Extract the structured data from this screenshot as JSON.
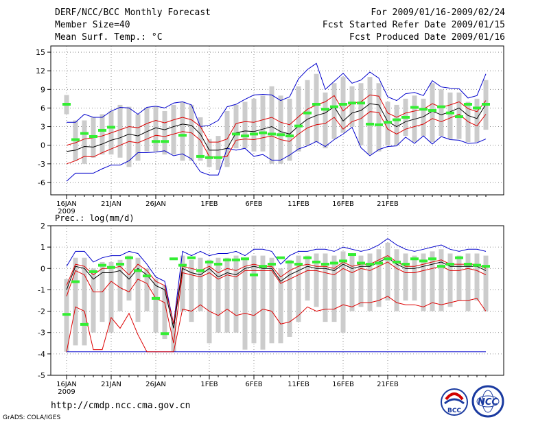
{
  "header": {
    "title": "DERF/NCC/BCC Monthly Forecast",
    "member_size": "Member Size=40",
    "variable": "Mean Surf. Temp.: °C",
    "period": "For 2009/01/16-2009/02/24",
    "start_date": "Fcst Started Refer Date 2009/01/15",
    "produced_date": "Fcst Produced Date 2009/01/16"
  },
  "lower_panel_label": "Prec.: log(mm/d)",
  "footer": {
    "url": "http://cmdp.ncc.cma.gov.cn",
    "software": "GrADS: COLA/IGES",
    "logo1_text": "BCC",
    "logo2_text": "NCC"
  },
  "colors": {
    "ensemble_mean": "#000000",
    "ci_band": "#dd0000",
    "envelope": "#0000cc",
    "observed": "#33ee33",
    "range_bar": "#cccccc"
  },
  "chart_data": [
    {
      "type": "line",
      "title": "Mean Surf. Temp.: °C",
      "ylim": [
        -8,
        16
      ],
      "yticks": [
        -6,
        -3,
        0,
        3,
        6,
        9,
        12,
        15
      ],
      "xticks": [
        {
          "day": 0,
          "label": "16JAN",
          "sub": "2009"
        },
        {
          "day": 5,
          "label": "21JAN"
        },
        {
          "day": 10,
          "label": "26JAN"
        },
        {
          "day": 16,
          "label": "1FEB"
        },
        {
          "day": 21,
          "label": "6FEB"
        },
        {
          "day": 26,
          "label": "11FEB"
        },
        {
          "day": 31,
          "label": "16FEB"
        },
        {
          "day": 36,
          "label": "21FEB"
        }
      ],
      "mean": [
        -1.0,
        -0.8,
        -0.2,
        -0.3,
        0.2,
        0.8,
        1.2,
        1.8,
        1.5,
        2.2,
        2.8,
        2.5,
        3.0,
        3.4,
        3.2,
        1.8,
        -0.8,
        -0.8,
        -0.5,
        2.0,
        2.3,
        2.2,
        2.6,
        3.0,
        2.2,
        1.8,
        3.1,
        4.2,
        4.8,
        5.2,
        6.2,
        3.9,
        5.2,
        5.6,
        6.7,
        6.5,
        3.8,
        3.0,
        3.8,
        4.2,
        4.6,
        5.5,
        4.9,
        5.4,
        6.0,
        4.8,
        4.3,
        6.6
      ],
      "ci_upper": [
        0.0,
        0.4,
        1.0,
        1.2,
        1.5,
        2.0,
        2.5,
        3.0,
        2.8,
        3.5,
        4.0,
        3.6,
        4.1,
        4.5,
        4.1,
        3.0,
        0.5,
        0.5,
        1.0,
        3.5,
        3.8,
        3.7,
        4.1,
        4.5,
        3.7,
        3.3,
        4.6,
        5.8,
        6.5,
        7.0,
        8.0,
        5.5,
        6.8,
        7.0,
        8.1,
        7.9,
        5.2,
        4.5,
        5.2,
        5.5,
        5.8,
        6.7,
        6.1,
        6.5,
        7.0,
        5.9,
        5.4,
        7.2
      ],
      "ci_lower": [
        -3.0,
        -2.5,
        -1.8,
        -1.9,
        -1.2,
        -0.6,
        0.0,
        0.6,
        0.4,
        1.0,
        1.6,
        1.4,
        1.8,
        2.2,
        2.0,
        0.8,
        -1.8,
        -2.0,
        -1.8,
        0.8,
        1.0,
        0.9,
        1.2,
        1.5,
        0.9,
        0.6,
        1.8,
        2.8,
        3.3,
        3.5,
        4.5,
        2.6,
        3.8,
        4.3,
        5.4,
        5.3,
        2.6,
        1.8,
        2.6,
        3.0,
        3.4,
        4.3,
        3.8,
        4.4,
        5.0,
        3.8,
        3.1,
        5.0
      ],
      "env_upper": [
        3.7,
        3.7,
        5.0,
        4.5,
        4.5,
        5.5,
        6.1,
        6.0,
        5.0,
        6.1,
        6.3,
        6.0,
        6.8,
        7.0,
        6.5,
        3.0,
        3.2,
        4.0,
        6.2,
        6.6,
        7.4,
        8.1,
        8.2,
        8.1,
        7.2,
        7.8,
        10.7,
        12.2,
        13.2,
        9.0,
        10.3,
        11.6,
        10.0,
        10.5,
        11.8,
        10.8,
        7.8,
        7.2,
        8.3,
        8.5,
        8.0,
        10.4,
        9.4,
        9.2,
        9.1,
        7.6,
        8.0,
        11.5
      ],
      "env_lower": [
        -5.8,
        -4.5,
        -4.5,
        -4.5,
        -3.8,
        -3.2,
        -3.2,
        -2.5,
        -1.2,
        -1.2,
        -1.1,
        -0.9,
        -1.7,
        -1.4,
        -2.2,
        -4.3,
        -4.8,
        -4.8,
        -0.5,
        -0.8,
        -0.5,
        -1.8,
        -1.5,
        -2.4,
        -2.4,
        -1.6,
        -0.6,
        -0.1,
        0.6,
        -0.2,
        0.9,
        1.8,
        2.9,
        -0.4,
        -1.7,
        -0.7,
        -0.2,
        -0.1,
        1.3,
        0.3,
        1.5,
        0.2,
        1.4,
        0.9,
        0.8,
        0.3,
        0.4,
        1.0
      ],
      "range_upper": [
        8.1,
        4.0,
        4.0,
        4.5,
        5.0,
        5.5,
        6.5,
        6.2,
        5.0,
        6.0,
        6.3,
        5.5,
        6.5,
        7.0,
        6.5,
        4.5,
        1.0,
        1.5,
        5.5,
        6.5,
        7.0,
        7.5,
        8.0,
        9.5,
        8.0,
        7.5,
        9.5,
        10.5,
        11.5,
        8.5,
        10.0,
        11.0,
        9.5,
        10.0,
        11.0,
        10.0,
        7.0,
        6.5,
        7.5,
        8.0,
        7.5,
        10.0,
        9.0,
        8.5,
        8.5,
        7.0,
        7.5,
        10.5
      ],
      "range_lower": [
        5.0,
        -2.5,
        -3.0,
        -2.0,
        -1.5,
        -1.5,
        -2.0,
        -3.5,
        -2.5,
        -1.0,
        -1.0,
        -1.5,
        -1.5,
        -2.5,
        -2.5,
        -2.5,
        -3.5,
        -4.0,
        -3.5,
        -0.5,
        -0.5,
        -1.0,
        -1.0,
        -3.0,
        -3.0,
        -2.5,
        -1.0,
        0.0,
        0.5,
        -0.5,
        1.0,
        2.0,
        3.0,
        0.0,
        -1.5,
        -1.0,
        0.0,
        0.0,
        1.5,
        0.5,
        1.5,
        0.5,
        1.5,
        1.0,
        1.0,
        0.5,
        0.5,
        2.5
      ],
      "observed": [
        6.6,
        0.9,
        1.9,
        1.4,
        2.4,
        2.9,
        null,
        null,
        null,
        null,
        0.6,
        0.6,
        null,
        1.6,
        null,
        -1.8,
        -2.0,
        -2.0,
        null,
        1.8,
        1.5,
        1.8,
        2.0,
        1.8,
        1.7,
        1.5,
        3.1,
        5.2,
        6.6,
        5.8,
        6.2,
        6.6,
        6.8,
        6.8,
        3.4,
        3.3,
        3.7,
        4.1,
        4.5,
        6.1,
        5.8,
        5.6,
        6.2,
        5.2,
        4.6,
        6.6,
        6.0,
        6.6
      ]
    },
    {
      "type": "line",
      "title": "Prec.: log(mm/d)",
      "ylim": [
        -5,
        2
      ],
      "yticks": [
        -5,
        -4,
        -3,
        -2,
        -1,
        0,
        1,
        2
      ],
      "xticks": [
        {
          "day": 0,
          "label": "16JAN",
          "sub": "2009"
        },
        {
          "day": 5,
          "label": "21JAN"
        },
        {
          "day": 10,
          "label": "26JAN"
        },
        {
          "day": 16,
          "label": "1FEB"
        },
        {
          "day": 21,
          "label": "6FEB"
        },
        {
          "day": 26,
          "label": "11FEB"
        },
        {
          "day": 31,
          "label": "16FEB"
        },
        {
          "day": 36,
          "label": "21FEB"
        }
      ],
      "mean": [
        -1.0,
        0.1,
        0.0,
        -0.5,
        -0.2,
        -0.2,
        -0.1,
        -0.5,
        0.0,
        -0.3,
        -0.8,
        -1.0,
        -2.8,
        0.0,
        -0.2,
        -0.3,
        0.0,
        -0.4,
        -0.2,
        -0.3,
        0.0,
        0.1,
        0.0,
        0.0,
        -0.6,
        -0.3,
        -0.1,
        0.1,
        0.0,
        0.0,
        -0.1,
        0.2,
        0.0,
        0.1,
        0.1,
        0.3,
        0.5,
        0.2,
        0.0,
        0.0,
        0.1,
        0.2,
        0.3,
        0.1,
        0.1,
        0.1,
        0.1,
        -0.1
      ],
      "ci_upper": [
        -0.8,
        0.2,
        0.1,
        -0.3,
        0.0,
        0.0,
        0.1,
        -0.3,
        0.2,
        -0.1,
        -0.6,
        -0.8,
        -2.6,
        0.1,
        0.0,
        -0.1,
        0.1,
        -0.2,
        0.0,
        -0.1,
        0.1,
        0.2,
        0.1,
        0.1,
        -0.4,
        -0.1,
        0.1,
        0.2,
        0.1,
        0.1,
        0.0,
        0.3,
        0.1,
        0.2,
        0.2,
        0.4,
        0.6,
        0.3,
        0.1,
        0.1,
        0.2,
        0.3,
        0.4,
        0.2,
        0.2,
        0.2,
        0.2,
        0.0
      ],
      "ci_lower": [
        -1.3,
        -0.1,
        -0.3,
        -1.1,
        -1.1,
        -0.6,
        -0.9,
        -1.1,
        -0.5,
        -0.7,
        -1.4,
        -1.6,
        -3.5,
        -0.2,
        -0.3,
        -0.4,
        -0.2,
        -0.5,
        -0.3,
        -0.4,
        -0.1,
        -0.1,
        -0.1,
        -0.1,
        -0.7,
        -0.5,
        -0.3,
        -0.1,
        -0.1,
        -0.2,
        -0.3,
        0.0,
        -0.2,
        0.0,
        -0.1,
        0.1,
        0.3,
        0.0,
        -0.2,
        -0.2,
        -0.1,
        0.0,
        0.1,
        -0.1,
        -0.1,
        0.0,
        -0.1,
        -0.3
      ],
      "env_upper": [
        0.1,
        0.8,
        0.8,
        0.3,
        0.5,
        0.6,
        0.6,
        0.8,
        0.7,
        0.2,
        -0.4,
        -0.6,
        -2.6,
        0.8,
        0.6,
        0.8,
        0.6,
        0.7,
        0.7,
        0.8,
        0.6,
        0.9,
        0.9,
        0.8,
        0.2,
        0.6,
        0.8,
        0.8,
        0.9,
        0.9,
        0.8,
        1.0,
        0.9,
        0.8,
        0.9,
        1.1,
        1.4,
        1.1,
        0.9,
        0.8,
        0.9,
        1.0,
        1.1,
        0.9,
        0.8,
        0.9,
        0.9,
        0.8
      ],
      "env_lower": [
        -3.9,
        -3.9,
        -3.9,
        -3.9,
        -3.9,
        -3.9,
        -3.9,
        -3.9,
        -3.9,
        -3.9,
        -3.9,
        -3.9,
        -3.9,
        -3.9,
        -3.9,
        -3.9,
        -3.9,
        -3.9,
        -3.9,
        -3.9,
        -3.9,
        -3.9,
        -3.9,
        -3.9,
        -3.9,
        -3.9,
        -3.9,
        -3.9,
        -3.9,
        -3.9,
        -3.9,
        -3.9,
        -3.9,
        -3.9,
        -3.9,
        -3.9,
        -3.9,
        -3.9,
        -3.9,
        -3.9,
        -3.9,
        -3.9,
        -3.9,
        -3.9,
        -3.9,
        -3.9,
        -3.9,
        -3.9
      ],
      "pct_low": [
        -3.9,
        -1.8,
        -2.0,
        -3.8,
        -3.8,
        -2.3,
        -2.8,
        -2.1,
        -3.1,
        -3.9,
        -3.9,
        -3.9,
        -3.9,
        -1.9,
        -2.0,
        -1.7,
        -2.0,
        -2.2,
        -1.9,
        -2.2,
        -2.1,
        -2.2,
        -1.9,
        -2.0,
        -2.6,
        -2.5,
        -2.2,
        -1.8,
        -2.0,
        -1.9,
        -1.9,
        -1.7,
        -1.8,
        -1.6,
        -1.6,
        -1.5,
        -1.3,
        -1.6,
        -1.7,
        -1.7,
        -1.8,
        -1.6,
        -1.7,
        -1.6,
        -1.5,
        -1.5,
        -1.4,
        -2.0
      ],
      "range_upper": [
        -0.5,
        0.5,
        0.5,
        0.0,
        0.3,
        0.3,
        0.4,
        0.6,
        0.5,
        0.0,
        -0.5,
        -0.8,
        -2.5,
        0.6,
        0.4,
        0.5,
        0.4,
        0.5,
        0.5,
        0.6,
        0.4,
        0.6,
        0.6,
        0.5,
        0.0,
        0.4,
        0.6,
        0.6,
        0.7,
        0.7,
        0.6,
        0.8,
        0.7,
        0.6,
        0.7,
        0.9,
        1.2,
        0.9,
        0.7,
        0.6,
        0.7,
        0.8,
        0.9,
        0.7,
        0.6,
        0.7,
        0.7,
        0.6
      ],
      "range_lower": [
        -3.9,
        -3.6,
        -3.6,
        -3.0,
        -2.5,
        -3.0,
        -2.0,
        -1.5,
        -2.5,
        -2.0,
        -3.0,
        -3.3,
        -3.9,
        -2.0,
        -2.5,
        -2.0,
        -3.5,
        -3.0,
        -3.0,
        -3.0,
        -3.8,
        -3.5,
        -3.8,
        -3.5,
        -3.5,
        -3.2,
        -2.5,
        -1.5,
        -1.8,
        -2.5,
        -2.5,
        -3.0,
        -2.0,
        -1.8,
        -2.0,
        -1.8,
        -1.5,
        -2.0,
        -1.5,
        -1.5,
        -2.0,
        -2.0,
        -2.0,
        -1.8,
        -1.5,
        -2.0,
        -1.5,
        -2.0
      ],
      "observed": [
        -2.15,
        -0.62,
        -2.62,
        -0.15,
        0.15,
        0.05,
        0.2,
        0.5,
        -0.1,
        -0.35,
        -1.4,
        -3.05,
        0.45,
        0.15,
        0.5,
        -0.1,
        0.3,
        0.2,
        0.4,
        0.4,
        0.45,
        -0.3,
        0.1,
        0.2,
        0.5,
        0.3,
        0.2,
        0.5,
        0.3,
        0.2,
        0.25,
        0.35,
        0.65,
        0.25,
        0.2,
        0.25,
        0.45,
        0.3,
        0.2,
        0.45,
        0.35,
        0.45,
        0.1,
        0.2,
        0.5,
        0.2,
        0.15,
        0.1
      ]
    }
  ]
}
